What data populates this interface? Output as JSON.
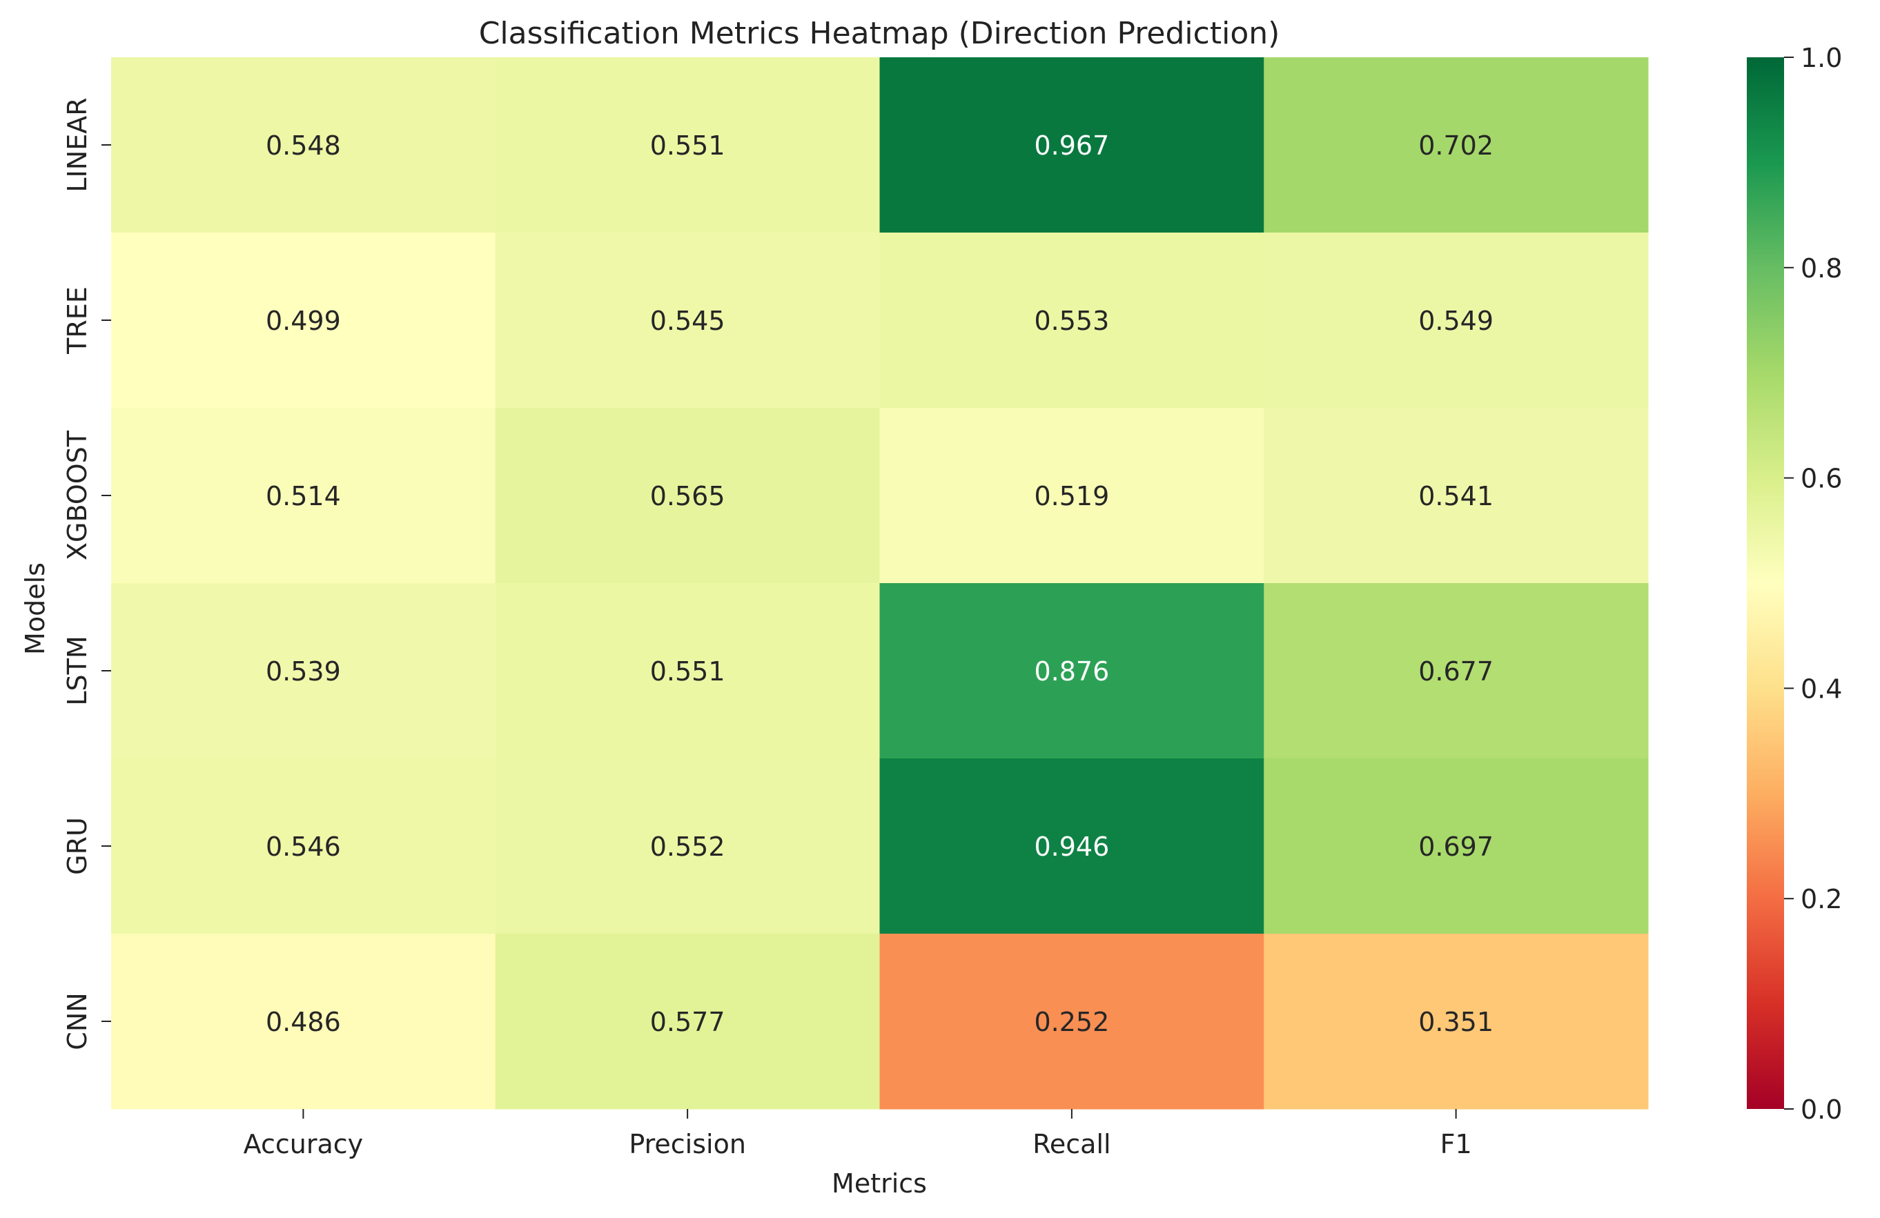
{
  "chart_data": {
    "type": "heatmap",
    "title": "Classification Metrics Heatmap (Direction Prediction)",
    "xlabel": "Metrics",
    "ylabel": "Models",
    "columns": [
      "Accuracy",
      "Precision",
      "Recall",
      "F1"
    ],
    "rows": [
      "LINEAR",
      "TREE",
      "XGBOOST",
      "LSTM",
      "GRU",
      "CNN"
    ],
    "values": [
      [
        0.548,
        0.551,
        0.967,
        0.702
      ],
      [
        0.499,
        0.545,
        0.553,
        0.549
      ],
      [
        0.514,
        0.565,
        0.519,
        0.541
      ],
      [
        0.539,
        0.551,
        0.876,
        0.677
      ],
      [
        0.546,
        0.552,
        0.946,
        0.697
      ],
      [
        0.486,
        0.577,
        0.252,
        0.351
      ]
    ],
    "annotation_format": "0.000",
    "colormap": "RdYlGn",
    "color_range": [
      0,
      1
    ],
    "colorbar": {
      "ticks": [
        "0.0",
        "0.2",
        "0.4",
        "0.6",
        "0.8",
        "1.0"
      ]
    },
    "grid": false
  }
}
